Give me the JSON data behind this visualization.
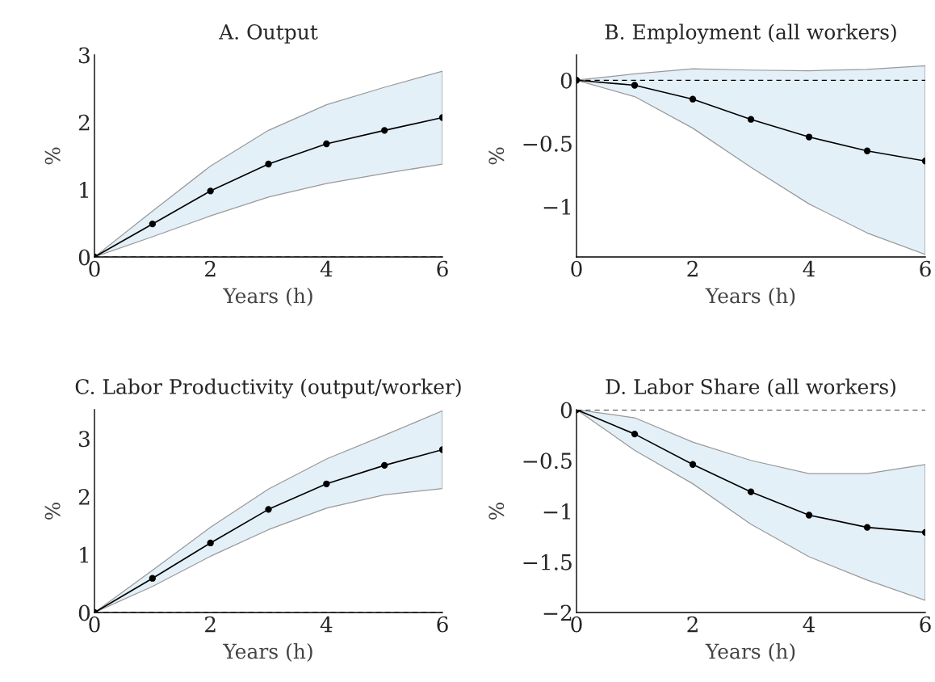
{
  "chart_data": [
    {
      "type": "line",
      "title": "A. Output",
      "xlabel": "Years (h)",
      "ylabel": "%",
      "x": [
        0,
        1,
        2,
        3,
        4,
        5,
        6
      ],
      "xlim": [
        0,
        6
      ],
      "xticks": [
        0,
        2,
        4,
        6
      ],
      "ylim": [
        0,
        3
      ],
      "yticks": [
        0,
        1,
        2,
        3
      ],
      "marker": "circle",
      "grid": false,
      "series": [
        {
          "color": "#000000",
          "values": [
            0,
            0.49,
            0.98,
            1.38,
            1.68,
            1.88,
            2.07
          ],
          "lower": [
            0,
            0.3,
            0.61,
            0.89,
            1.09,
            1.24,
            1.38
          ],
          "upper": [
            0,
            0.68,
            1.35,
            1.88,
            2.26,
            2.52,
            2.76
          ]
        }
      ],
      "ref_lines": [
        {
          "axis": "y",
          "value": 0,
          "line_style": "dashed",
          "color": "#000000"
        }
      ]
    },
    {
      "type": "line",
      "title": "B. Employment (all workers)",
      "xlabel": "Years (h)",
      "ylabel": "%",
      "x": [
        0,
        1,
        2,
        3,
        4,
        5,
        6
      ],
      "xlim": [
        0,
        6
      ],
      "xticks": [
        0,
        2,
        4,
        6
      ],
      "ylim": [
        -1.4,
        0.2
      ],
      "yticks": [
        -1,
        -0.5,
        0
      ],
      "marker": "circle",
      "grid": false,
      "series": [
        {
          "color": "#000000",
          "values": [
            0,
            -0.04,
            -0.15,
            -0.31,
            -0.45,
            -0.56,
            -0.64
          ],
          "lower": [
            0,
            -0.13,
            -0.38,
            -0.69,
            -0.98,
            -1.21,
            -1.38
          ],
          "upper": [
            0,
            0.05,
            0.09,
            0.08,
            0.075,
            0.085,
            0.115
          ]
        }
      ],
      "ref_lines": [
        {
          "axis": "y",
          "value": 0,
          "line_style": "dashed",
          "color": "#000000"
        }
      ]
    },
    {
      "type": "line",
      "title": "C. Labor Productivity (output/worker)",
      "xlabel": "Years (h)",
      "ylabel": "%",
      "x": [
        0,
        1,
        2,
        3,
        4,
        5,
        6
      ],
      "xlim": [
        0,
        6
      ],
      "xticks": [
        0,
        2,
        4,
        6
      ],
      "ylim": [
        0,
        3.5
      ],
      "yticks": [
        0,
        1,
        2,
        3
      ],
      "marker": "circle",
      "grid": false,
      "series": [
        {
          "color": "#000000",
          "values": [
            0,
            0.59,
            1.2,
            1.78,
            2.22,
            2.54,
            2.81
          ],
          "lower": [
            0,
            0.45,
            0.97,
            1.43,
            1.8,
            2.03,
            2.14
          ],
          "upper": [
            0,
            0.73,
            1.47,
            2.13,
            2.65,
            3.06,
            3.48
          ]
        }
      ],
      "ref_lines": [
        {
          "axis": "y",
          "value": 0,
          "line_style": "dashed",
          "color": "#000000"
        }
      ]
    },
    {
      "type": "line",
      "title": "D. Labor Share (all workers)",
      "xlabel": "Years (h)",
      "ylabel": "%",
      "x": [
        0,
        1,
        2,
        3,
        4,
        5,
        6
      ],
      "xlim": [
        0,
        6
      ],
      "xticks": [
        0,
        2,
        4,
        6
      ],
      "ylim": [
        -2,
        0
      ],
      "yticks": [
        -2,
        -1.5,
        -1,
        -0.5,
        0
      ],
      "marker": "circle",
      "grid": false,
      "series": [
        {
          "color": "#000000",
          "values": [
            0,
            -0.24,
            -0.54,
            -0.81,
            -1.04,
            -1.16,
            -1.21
          ],
          "lower": [
            0,
            -0.4,
            -0.73,
            -1.13,
            -1.45,
            -1.68,
            -1.88
          ],
          "upper": [
            0,
            -0.08,
            -0.32,
            -0.5,
            -0.63,
            -0.63,
            -0.54
          ]
        }
      ],
      "ref_lines": [
        {
          "axis": "y",
          "value": 0,
          "line_style": "dashed",
          "color": "#000000"
        }
      ]
    }
  ]
}
